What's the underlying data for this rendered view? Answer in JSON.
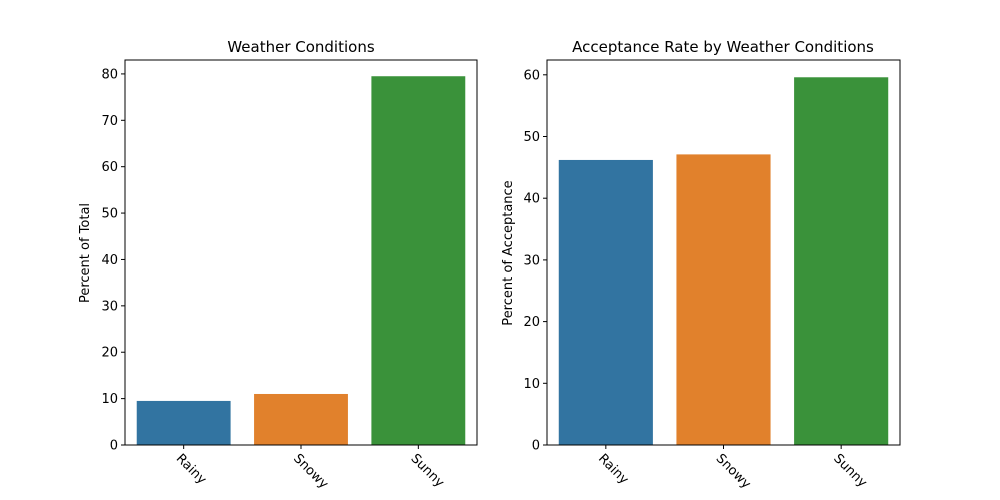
{
  "chart_data": [
    {
      "type": "bar",
      "title": "Weather Conditions",
      "xlabel": "",
      "ylabel": "Percent of Total",
      "categories": [
        "Rainy",
        "Snowy",
        "Sunny"
      ],
      "values": [
        9.5,
        11.0,
        79.5
      ],
      "colors": [
        "#3274a1",
        "#e1812c",
        "#3a923a"
      ],
      "ylim": [
        0,
        83
      ],
      "yticks": [
        0,
        10,
        20,
        30,
        40,
        50,
        60,
        70,
        80
      ],
      "grid": false,
      "legend": "none"
    },
    {
      "type": "bar",
      "title": "Acceptance Rate by Weather Conditions",
      "xlabel": "",
      "ylabel": "Percent of Acceptance",
      "categories": [
        "Rainy",
        "Snowy",
        "Sunny"
      ],
      "values": [
        46.2,
        47.1,
        59.6
      ],
      "colors": [
        "#3274a1",
        "#e1812c",
        "#3a923a"
      ],
      "ylim": [
        0,
        62.4
      ],
      "yticks": [
        0,
        10,
        20,
        30,
        40,
        50,
        60
      ],
      "grid": false,
      "legend": "none"
    }
  ]
}
